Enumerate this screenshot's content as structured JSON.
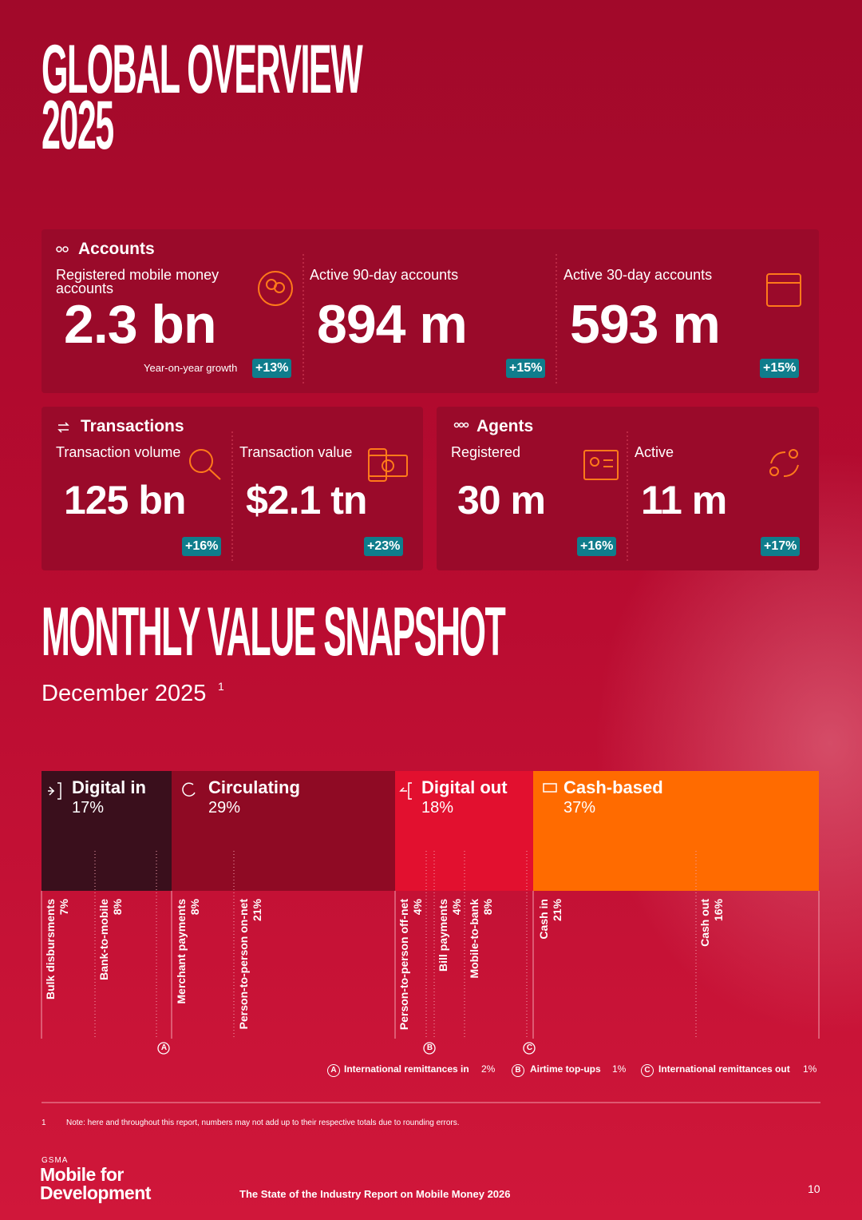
{
  "header": {
    "title_line1": "GLOBAL OVERVIEW",
    "title_line2": "2025"
  },
  "accounts": {
    "title": "Accounts",
    "items": [
      {
        "label": "Registered mobile money accounts",
        "value": "2.3 bn",
        "growth_label": "Year-on-year growth",
        "growth": "+13%"
      },
      {
        "label": "Active 90-day accounts",
        "value": "894 m",
        "growth": "+15%"
      },
      {
        "label": "Active 30-day accounts",
        "value": "593 m",
        "growth": "+15%"
      }
    ]
  },
  "transactions": {
    "title": "Transactions",
    "items": [
      {
        "label": "Transaction volume",
        "value": "125 bn",
        "growth": "+16%"
      },
      {
        "label": "Transaction value",
        "value": "$2.1 tn",
        "growth": "+23%"
      }
    ]
  },
  "agents": {
    "title": "Agents",
    "items": [
      {
        "label": "Registered",
        "value": "30 m",
        "growth": "+16%"
      },
      {
        "label": "Active",
        "value": "11 m",
        "growth": "+17%"
      }
    ]
  },
  "snapshot": {
    "title": "MONTHLY VALUE SNAPSHOT",
    "subtitle": "December 2025",
    "footnote_ref": "1",
    "groups": [
      {
        "name": "Digital in",
        "share": "17%"
      },
      {
        "name": "Circulating",
        "share": "29%"
      },
      {
        "name": "Digital out",
        "share": "18%"
      },
      {
        "name": "Cash-based",
        "share": "37%"
      }
    ],
    "flows": [
      {
        "name": "Bulk disbursments",
        "share": "7%"
      },
      {
        "name": "Bank-to-mobile",
        "share": "8%"
      },
      {
        "name": "Merchant payments",
        "share": "8%"
      },
      {
        "name": "Person-to-person on-net",
        "share": "21%"
      },
      {
        "name": "Person-to-person off-net",
        "share": "4%"
      },
      {
        "name": "Bill payments",
        "share": "4%"
      },
      {
        "name": "Mobile-to-bank",
        "share": "8%"
      },
      {
        "name": "Cash in",
        "share": "21%"
      },
      {
        "name": "Cash out",
        "share": "16%"
      }
    ],
    "legend": [
      {
        "marker": "A",
        "name": "International remittances in",
        "share": "2%"
      },
      {
        "marker": "B",
        "name": "Airtime top-ups",
        "share": "1%"
      },
      {
        "marker": "C",
        "name": "International remittances out",
        "share": "1%"
      }
    ]
  },
  "footnote": {
    "number": "1",
    "text": "Note: here and throughout this report, numbers may not add up to their respective totals due to rounding errors."
  },
  "footer": {
    "brand_small": "GSMA",
    "brand_line1": "Mobile for",
    "brand_line2": "Development",
    "report": "The State of the Industry Report on Mobile Money 2026",
    "page": "10"
  }
}
